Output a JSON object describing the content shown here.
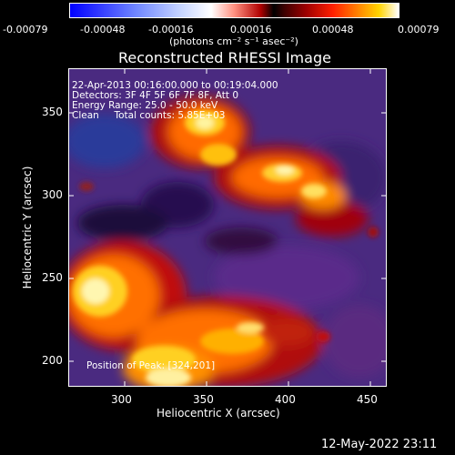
{
  "colorbar": {
    "ticks": [
      "-0.00079",
      "-0.00048",
      "-0.00016",
      "0.00016",
      "0.00048",
      "0.00079"
    ],
    "units": "(photons cm⁻² s⁻¹ asec⁻²)"
  },
  "title": "Reconstructed RHESSI Image",
  "info": {
    "line1": "22-Apr-2013 00:16:00.000 to 00:19:04.000",
    "line2": "Detectors: 3F 4F 5F 6F 7F 8F, Att 0",
    "line3": "Energy Range: 25.0 - 50.0 keV",
    "line4": "Clean     Total counts: 5.85E+03",
    "position": "Position of Peak: [324,201]"
  },
  "axes": {
    "xlabel": "Heliocentric X (arcsec)",
    "ylabel": "Heliocentric Y (arcsec)",
    "xticks": [
      "300",
      "350",
      "400",
      "450"
    ],
    "yticks": [
      "200",
      "250",
      "300",
      "350"
    ]
  },
  "timestamp": "12-May-2022 23:11"
}
